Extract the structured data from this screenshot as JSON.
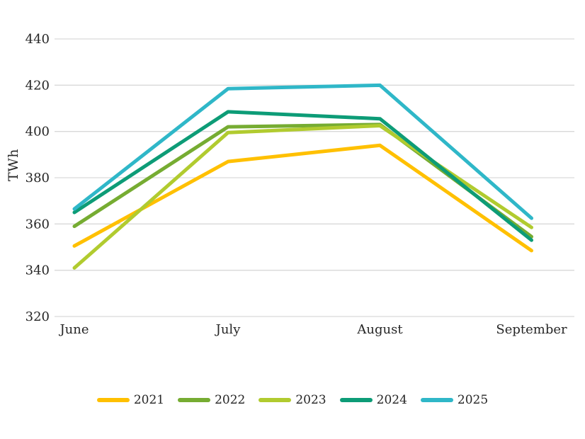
{
  "chart_data": {
    "type": "line",
    "title": "",
    "xlabel": "",
    "ylabel": "TWh",
    "categories": [
      "June",
      "July",
      "August",
      "September"
    ],
    "series": [
      {
        "name": "2021",
        "color": "#FFC000",
        "values": [
          350.5,
          387,
          394,
          348.5
        ]
      },
      {
        "name": "2022",
        "color": "#76AC32",
        "values": [
          359,
          402,
          403,
          354.5
        ]
      },
      {
        "name": "2023",
        "color": "#B1CB2F",
        "values": [
          341,
          399.5,
          402.5,
          358.5
        ]
      },
      {
        "name": "2024",
        "color": "#0D9C77",
        "values": [
          365,
          408.5,
          405.5,
          353
        ]
      },
      {
        "name": "2025",
        "color": "#2FB7C8",
        "values": [
          366.5,
          418.5,
          420,
          362.5
        ]
      }
    ],
    "ylim": [
      320,
      440
    ],
    "ytick_step": 20,
    "yticks": [
      320,
      340,
      360,
      380,
      400,
      420,
      440
    ],
    "grid": "horizontal",
    "gridline_color": "#D9D9D9",
    "text_color": "#262626",
    "legend_position": "bottom",
    "line_width": 5
  }
}
